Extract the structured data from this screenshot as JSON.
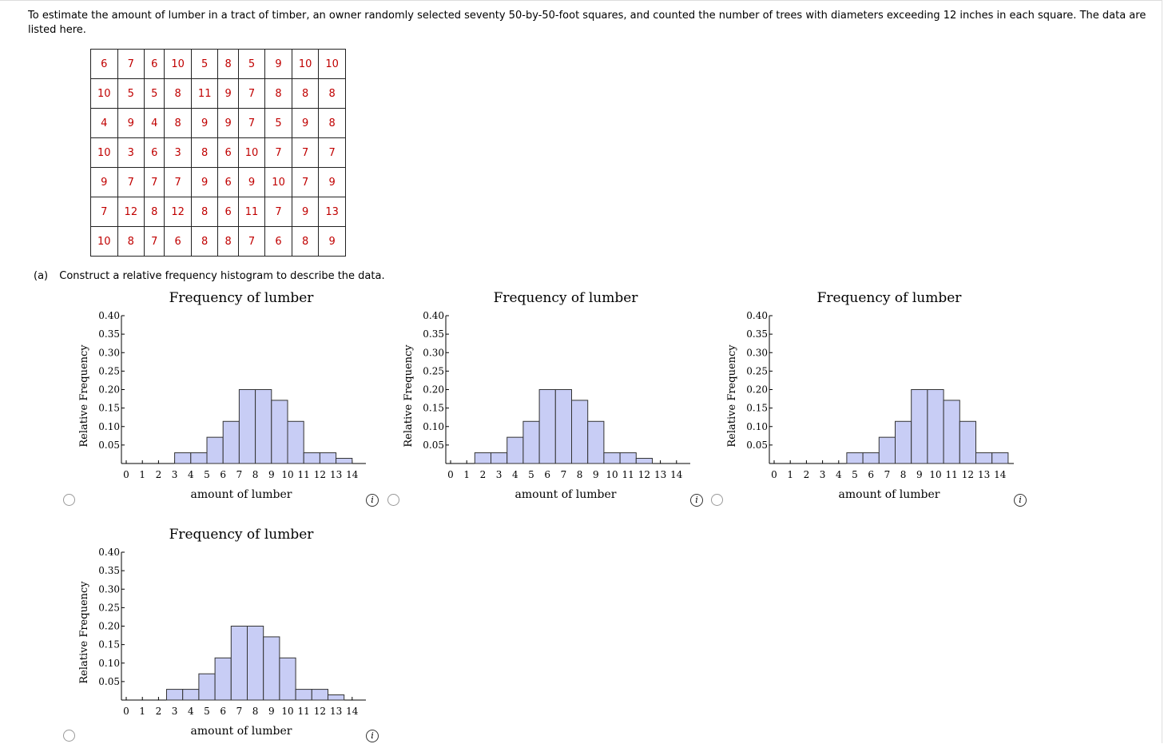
{
  "intro_text": "To estimate the amount of lumber in a tract of timber, an owner randomly selected seventy 50-by-50-foot squares, and counted the number of trees with diameters exceeding 12 inches in each square. The data are listed here.",
  "data_table": [
    [
      "6",
      "7",
      "6",
      "10",
      "5",
      "8",
      "5",
      "9",
      "10",
      "10"
    ],
    [
      "10",
      "5",
      "5",
      "8",
      "11",
      "9",
      "7",
      "8",
      "8",
      "8"
    ],
    [
      "4",
      "9",
      "4",
      "8",
      "9",
      "9",
      "7",
      "5",
      "9",
      "8"
    ],
    [
      "10",
      "3",
      "6",
      "3",
      "8",
      "6",
      "10",
      "7",
      "7",
      "7"
    ],
    [
      "9",
      "7",
      "7",
      "7",
      "9",
      "6",
      "9",
      "10",
      "7",
      "9"
    ],
    [
      "7",
      "12",
      "8",
      "12",
      "8",
      "6",
      "11",
      "7",
      "9",
      "13"
    ],
    [
      "10",
      "8",
      "7",
      "6",
      "8",
      "8",
      "7",
      "6",
      "8",
      "9"
    ]
  ],
  "question": {
    "label": "(a)",
    "text": "Construct a relative frequency histogram to describe the data."
  },
  "bar_color": "#c8cdf5",
  "chart_data": [
    {
      "type": "bar",
      "title": "Frequency of lumber",
      "xlabel": "amount of lumber",
      "ylabel": "Relative Frequency",
      "x_ticks": [
        "0",
        "1",
        "2",
        "3",
        "4",
        "5",
        "6",
        "7",
        "8",
        "9",
        "10",
        "11",
        "12",
        "13",
        "14"
      ],
      "y_ticks": [
        "0.40",
        "0.35",
        "0.30",
        "0.25",
        "0.20",
        "0.15",
        "0.10",
        "0.05"
      ],
      "ylim": [
        0,
        0.4
      ],
      "bins_start": [
        3,
        4,
        5,
        6,
        7,
        8,
        9,
        10,
        11,
        12,
        13
      ],
      "values": [
        0.029,
        0.029,
        0.071,
        0.114,
        0.2,
        0.2,
        0.171,
        0.114,
        0.029,
        0.029,
        0.014
      ]
    },
    {
      "type": "bar",
      "title": "Frequency of lumber",
      "xlabel": "amount of lumber",
      "ylabel": "Relative Frequency",
      "x_ticks": [
        "0",
        "1",
        "2",
        "3",
        "4",
        "5",
        "6",
        "7",
        "8",
        "9",
        "10",
        "11",
        "12",
        "13",
        "14"
      ],
      "y_ticks": [
        "0.40",
        "0.35",
        "0.30",
        "0.25",
        "0.20",
        "0.15",
        "0.10",
        "0.05"
      ],
      "ylim": [
        0,
        0.4
      ],
      "bins_start": [
        1.5,
        2.5,
        3.5,
        4.5,
        5.5,
        6.5,
        7.5,
        8.5,
        9.5,
        10.5,
        11.5
      ],
      "values": [
        0.029,
        0.029,
        0.071,
        0.114,
        0.2,
        0.2,
        0.171,
        0.114,
        0.029,
        0.029,
        0.014
      ]
    },
    {
      "type": "bar",
      "title": "Frequency of lumber",
      "xlabel": "amount of lumber",
      "ylabel": "Relative Frequency",
      "x_ticks": [
        "0",
        "1",
        "2",
        "3",
        "4",
        "5",
        "6",
        "7",
        "8",
        "9",
        "10",
        "11",
        "12",
        "13",
        "14"
      ],
      "y_ticks": [
        "0.40",
        "0.35",
        "0.30",
        "0.25",
        "0.20",
        "0.15",
        "0.10",
        "0.05"
      ],
      "ylim": [
        0,
        0.4
      ],
      "bins_start": [
        4.5,
        5.5,
        6.5,
        7.5,
        8.5,
        9.5,
        10.5,
        11.5,
        12.5,
        13.5
      ],
      "values": [
        0.029,
        0.029,
        0.071,
        0.114,
        0.2,
        0.2,
        0.171,
        0.114,
        0.029,
        0.029
      ]
    },
    {
      "type": "bar",
      "title": "Frequency of lumber",
      "xlabel": "amount of lumber",
      "ylabel": "Relative Frequency",
      "x_ticks": [
        "0",
        "1",
        "2",
        "3",
        "4",
        "5",
        "6",
        "7",
        "8",
        "9",
        "10",
        "11",
        "12",
        "13",
        "14"
      ],
      "y_ticks": [
        "0.40",
        "0.35",
        "0.30",
        "0.25",
        "0.20",
        "0.15",
        "0.10",
        "0.05"
      ],
      "ylim": [
        0,
        0.4
      ],
      "bins_start": [
        2.5,
        3.5,
        4.5,
        5.5,
        6.5,
        7.5,
        8.5,
        9.5,
        10.5,
        11.5,
        12.5
      ],
      "values": [
        0.029,
        0.029,
        0.071,
        0.114,
        0.2,
        0.2,
        0.171,
        0.114,
        0.029,
        0.029,
        0.014
      ]
    }
  ]
}
